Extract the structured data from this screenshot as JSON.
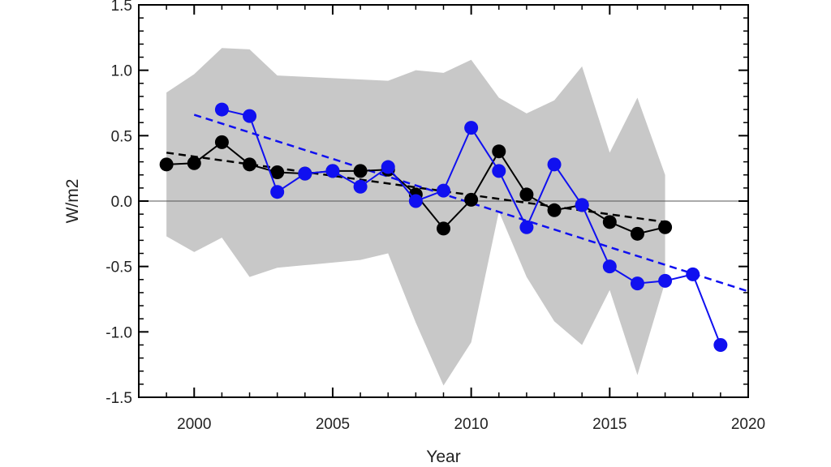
{
  "chart_data": {
    "type": "line",
    "title": "",
    "xlabel": "Year",
    "ylabel": "W/m2",
    "xlim": [
      1998,
      2020
    ],
    "ylim": [
      -1.5,
      1.5
    ],
    "xticks": [
      2000,
      2005,
      2010,
      2015,
      2020
    ],
    "xtick_labels": [
      "2000",
      "2005",
      "2010",
      "2015",
      "2020"
    ],
    "yticks": [
      -1.5,
      -1.0,
      -0.5,
      0.0,
      0.5,
      1.0,
      1.5
    ],
    "ytick_labels": [
      "-1.5",
      "-1.0",
      "-0.5",
      "0.0",
      "0.5",
      "1.0",
      "1.5"
    ],
    "grid": false,
    "zero_line": true,
    "band": {
      "color": "#c8c8c8",
      "x": [
        1999,
        2000,
        2001,
        2002,
        2003,
        2004,
        2005,
        2006,
        2007,
        2008,
        2009,
        2010,
        2011,
        2012,
        2013,
        2014,
        2015,
        2016,
        2017
      ],
      "upper": [
        0.83,
        0.97,
        1.17,
        1.16,
        0.96,
        0.95,
        0.94,
        0.93,
        0.92,
        1.0,
        0.98,
        1.08,
        0.79,
        0.67,
        0.77,
        1.03,
        0.37,
        0.79,
        0.2
      ],
      "lower": [
        -0.27,
        -0.39,
        -0.28,
        -0.58,
        -0.51,
        -0.49,
        -0.47,
        -0.45,
        -0.4,
        -0.93,
        -1.41,
        -1.08,
        -0.08,
        -0.58,
        -0.92,
        -1.1,
        -0.68,
        -1.33,
        -0.62
      ]
    },
    "series": [
      {
        "color": "#000000",
        "x": [
          1999,
          2000,
          2001,
          2002,
          2003,
          2004,
          2005,
          2006,
          2007,
          2008,
          2009,
          2010,
          2011,
          2012,
          2013,
          2014,
          2015,
          2016,
          2017
        ],
        "values": [
          0.28,
          0.29,
          0.45,
          0.28,
          0.22,
          0.21,
          0.23,
          0.23,
          0.24,
          0.05,
          -0.21,
          0.01,
          0.38,
          0.05,
          -0.07,
          -0.03,
          -0.16,
          -0.25,
          -0.2
        ]
      },
      {
        "color": "#1010f0",
        "x": [
          2001,
          2002,
          2003,
          2004,
          2005,
          2006,
          2007,
          2008,
          2009,
          2010,
          2011,
          2012,
          2013,
          2014,
          2015,
          2016,
          2017,
          2018,
          2019
        ],
        "values": [
          0.7,
          0.65,
          0.07,
          0.21,
          0.23,
          0.11,
          0.26,
          0.0,
          0.08,
          0.56,
          0.23,
          -0.2,
          0.28,
          -0.03,
          -0.5,
          -0.63,
          -0.61,
          -0.56,
          -1.1
        ]
      }
    ],
    "trendlines": [
      {
        "color": "#000000",
        "x": [
          1999,
          2017
        ],
        "values": [
          0.37,
          -0.16
        ]
      },
      {
        "color": "#1010f0",
        "x": [
          2000,
          2020
        ],
        "values": [
          0.66,
          -0.69
        ]
      }
    ]
  }
}
